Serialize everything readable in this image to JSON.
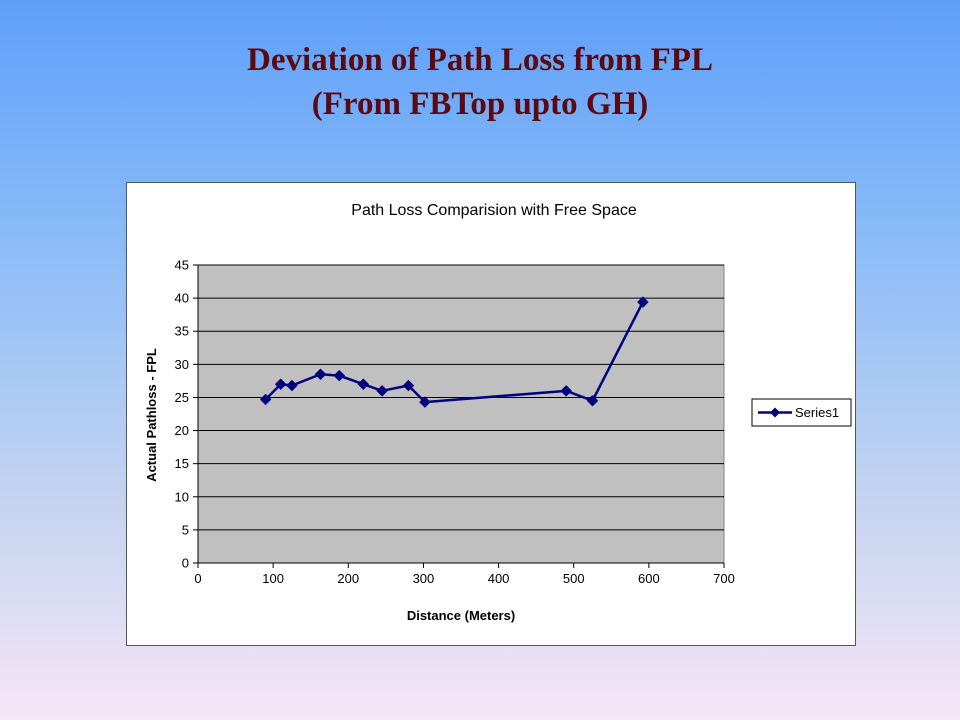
{
  "slide": {
    "title_line1": "Deviation of Path Loss from FPL",
    "title_line2": "(From FBTop upto GH)"
  },
  "chart_data": {
    "type": "line",
    "title": "Path Loss Comparision with Free Space",
    "xlabel": "Distance (Meters)",
    "ylabel": "Actual Pathloss - FPL",
    "xlim": [
      0,
      700
    ],
    "ylim": [
      0,
      45
    ],
    "xticks": [
      0,
      100,
      200,
      300,
      400,
      500,
      600,
      700
    ],
    "yticks": [
      0,
      5,
      10,
      15,
      20,
      25,
      30,
      35,
      40,
      45
    ],
    "grid": "horizontal",
    "legend_position": "right",
    "plot_background": "#c0c0c0",
    "series": [
      {
        "name": "Series1",
        "color": "#000080",
        "marker": "diamond",
        "x": [
          90,
          110,
          125,
          163,
          188,
          220,
          245,
          280,
          302,
          490,
          525,
          592
        ],
        "y": [
          24.7,
          27.0,
          26.8,
          28.5,
          28.3,
          27.0,
          26.0,
          26.8,
          24.3,
          26.0,
          24.5,
          39.4
        ]
      }
    ]
  }
}
